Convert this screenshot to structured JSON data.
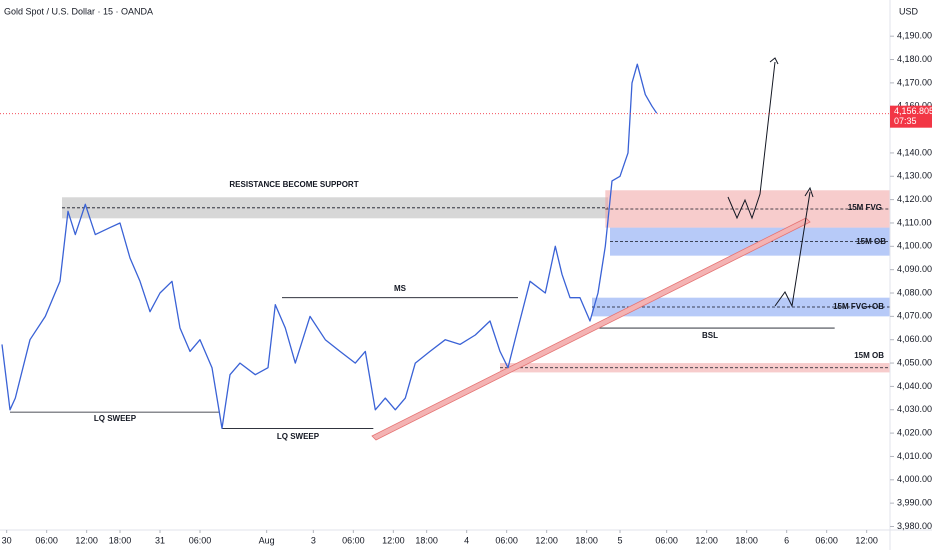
{
  "chart_data": {
    "type": "line",
    "title": "Gold Spot / U.S. Dollar · 15 · OANDA",
    "currency": "USD",
    "color": "#3a62d6",
    "x": [
      -0.7,
      0.5,
      1.3,
      3.5,
      5.8,
      8,
      9.2,
      10.3,
      11.8,
      13.3,
      15.5,
      17,
      18.5,
      20,
      21.5,
      23,
      24.8,
      26,
      27.5,
      29,
      30.8,
      32.3,
      33.5,
      35,
      37.3,
      39.2,
      40.3,
      41.8,
      43.3,
      45.5,
      47.8,
      50,
      52.3,
      53.8,
      55.3,
      56.8,
      58.3,
      59.8,
      61.3,
      63.5,
      65.8,
      68,
      70.3,
      72.5,
      74,
      75.2,
      76.7,
      78.5,
      80.8,
      82.3,
      83.3,
      84.5,
      86,
      87.5,
      88.7,
      89.8,
      90.8,
      92,
      93.2,
      93.8,
      94.6,
      95.8,
      96.8,
      97.5
    ],
    "values": [
      4058,
      4030,
      4035,
      4060,
      4070,
      4085,
      4115,
      4105,
      4118,
      4105,
      4108,
      4110,
      4095,
      4085,
      4072,
      4080,
      4085,
      4065,
      4055,
      4060,
      4048,
      4022,
      4045,
      4050,
      4045,
      4048,
      4075,
      4065,
      4050,
      4070,
      4060,
      4055,
      4050,
      4055,
      4030,
      4035,
      4030,
      4035,
      4050,
      4055,
      4060,
      4058,
      4062,
      4068,
      4055,
      4048,
      4065,
      4085,
      4080,
      4100,
      4088,
      4078,
      4078,
      4068,
      4080,
      4100,
      4128,
      4130,
      4140,
      4170,
      4178,
      4165,
      4160,
      4157
    ],
    "xlim": [
      -1,
      132.5
    ],
    "ylim": [
      3978.5,
      4205.5
    ],
    "xticks": [
      {
        "value": 0,
        "label": "30"
      },
      {
        "value": 6,
        "label": "06:00"
      },
      {
        "value": 12,
        "label": "12:00"
      },
      {
        "value": 17,
        "label": "18:00"
      },
      {
        "value": 23,
        "label": "31"
      },
      {
        "value": 29,
        "label": "06:00"
      },
      {
        "value": 39,
        "label": "Aug"
      },
      {
        "value": 46,
        "label": "3"
      },
      {
        "value": 52,
        "label": "06:00"
      },
      {
        "value": 58,
        "label": "12:00"
      },
      {
        "value": 63,
        "label": "18:00"
      },
      {
        "value": 69,
        "label": "4"
      },
      {
        "value": 75,
        "label": "06:00"
      },
      {
        "value": 81,
        "label": "12:00"
      },
      {
        "value": 87,
        "label": "18:00"
      },
      {
        "value": 92,
        "label": "5"
      },
      {
        "value": 99,
        "label": "06:00"
      },
      {
        "value": 105,
        "label": "12:00"
      },
      {
        "value": 111,
        "label": "18:00"
      },
      {
        "value": 117,
        "label": "6"
      },
      {
        "value": 123,
        "label": "06:00"
      },
      {
        "value": 129,
        "label": "12:00"
      }
    ],
    "yticks": [
      {
        "value": 3980,
        "label": "3,980.000"
      },
      {
        "value": 3990,
        "label": "3,990.000"
      },
      {
        "value": 4000,
        "label": "4,000.000"
      },
      {
        "value": 4010,
        "label": "4,010.000"
      },
      {
        "value": 4020,
        "label": "4,020.000"
      },
      {
        "value": 4030,
        "label": "4,030.000"
      },
      {
        "value": 4040,
        "label": "4,040.000"
      },
      {
        "value": 4050,
        "label": "4,050.000"
      },
      {
        "value": 4060,
        "label": "4,060.000"
      },
      {
        "value": 4070,
        "label": "4,070.000"
      },
      {
        "value": 4080,
        "label": "4,080.000"
      },
      {
        "value": 4090,
        "label": "4,090.000"
      },
      {
        "value": 4100,
        "label": "4,100.000"
      },
      {
        "value": 4110,
        "label": "4,110.000"
      },
      {
        "value": 4120,
        "label": "4,120.000"
      },
      {
        "value": 4130,
        "label": "4,130.000"
      },
      {
        "value": 4140,
        "label": "4,140.000"
      },
      {
        "value": 4160,
        "label": "4,160.000"
      },
      {
        "value": 4170,
        "label": "4,170.000"
      },
      {
        "value": 4180,
        "label": "4,180.000"
      },
      {
        "value": 4190,
        "label": "4,190.000"
      }
    ],
    "last_price": {
      "value": 4156.805,
      "label": "4,156.805"
    },
    "countdown": "07:35",
    "zones": [
      {
        "label": "RESISTANCE BECOME SUPPORT",
        "x": [
          8.3,
          90.2
        ],
        "range": [
          4112,
          4121
        ],
        "color": "#b0b0b0"
      },
      {
        "label": "15M FVG",
        "x": [
          89.8,
          132.5
        ],
        "range": [
          4108,
          4124
        ],
        "color": "#ef9a9a"
      },
      {
        "label": "15M OB",
        "x": [
          90.5,
          132.5
        ],
        "range": [
          4096,
          4108
        ],
        "color": "#6f95f2"
      },
      {
        "label": "15M FVG+OB",
        "x": [
          87.8,
          132.5
        ],
        "range": [
          4070,
          4078
        ],
        "color": "#6f95f2"
      },
      {
        "label": "15M OB",
        "x": [
          74,
          132.5
        ],
        "range": [
          4046,
          4050
        ],
        "color": "#ef9a9a"
      }
    ],
    "levels": [
      {
        "label": "LQ SWEEP",
        "x": [
          0.5,
          32
        ],
        "value": 4029
      },
      {
        "label": "LQ SWEEP",
        "x": [
          32.3,
          55
        ],
        "value": 4022
      },
      {
        "label": "MS",
        "x": [
          41.3,
          76.7
        ],
        "value": 4078
      },
      {
        "label": "BSL",
        "x": [
          87.5,
          124.2
        ],
        "value": 4065
      }
    ]
  }
}
